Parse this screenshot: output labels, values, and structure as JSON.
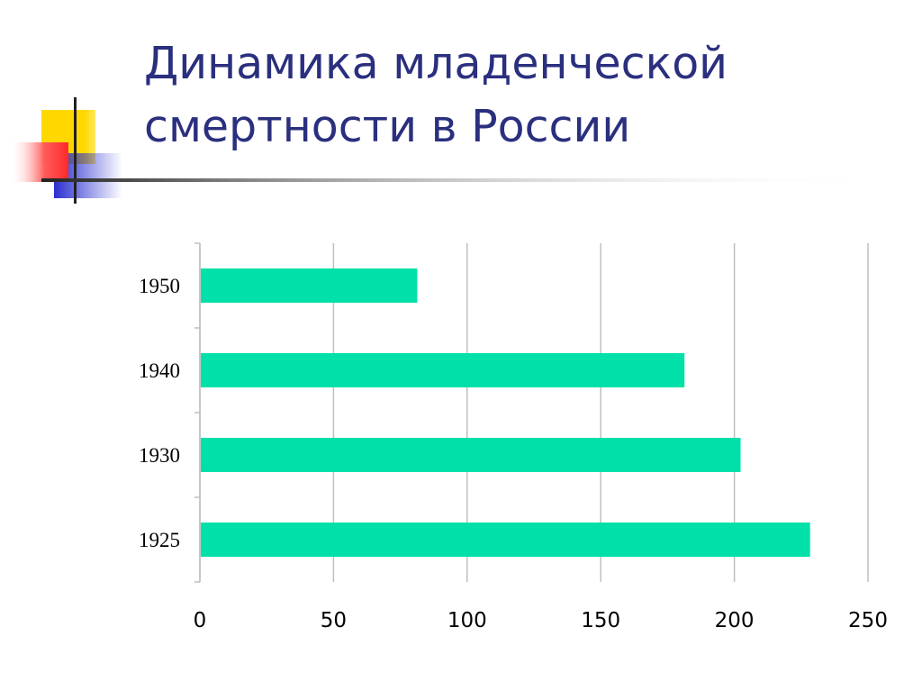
{
  "title": {
    "line1": "Динамика младенческой",
    "line2": "смертности в России"
  },
  "colors": {
    "title": "#2a2f7e",
    "bar": "#00e0a8",
    "grid": "#bfbfbf",
    "deco_yellow": "#ffd800",
    "deco_red": "#ff4b4b",
    "deco_blue": "#2a2fd0"
  },
  "chart_data": {
    "type": "bar",
    "orientation": "horizontal",
    "categories": [
      "1950",
      "1940",
      "1930",
      "1925"
    ],
    "values": [
      81,
      181,
      202,
      228
    ],
    "xlim": [
      0,
      250
    ],
    "xticks": [
      "0",
      "50",
      "100",
      "150",
      "200",
      "250"
    ],
    "grid": true,
    "legend": false
  }
}
